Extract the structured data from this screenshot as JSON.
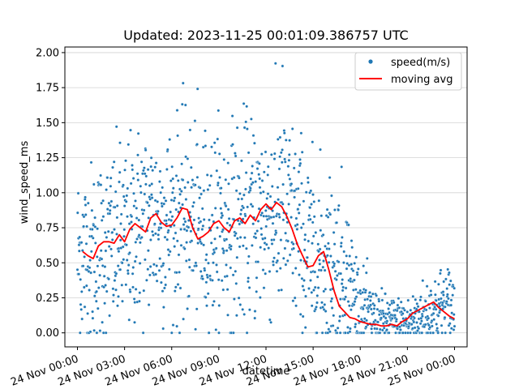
{
  "chart_data": {
    "type": "scatter",
    "title": "Updated: 2023-11-25 00:01:09.386757 UTC",
    "xlabel": "datetime",
    "ylabel": "wind_speed_ms",
    "x_ticks": [
      "24 Nov 00:00",
      "24 Nov 03:00",
      "24 Nov 06:00",
      "24 Nov 09:00",
      "24 Nov 12:00",
      "24 Nov 15:00",
      "24 Nov 18:00",
      "24 Nov 21:00",
      "25 Nov 00:00"
    ],
    "y_ticks": [
      "0.00",
      "0.25",
      "0.50",
      "0.75",
      "1.00",
      "1.25",
      "1.50",
      "1.75",
      "2.00"
    ],
    "xlim": [
      "2023-11-23 23:12",
      "2023-11-25 00:48"
    ],
    "ylim": [
      -0.1,
      2.04
    ],
    "grid": "horizontal",
    "legend_position": "top-right",
    "series": [
      {
        "name": "speed(m/s)",
        "kind": "scatter",
        "color": "#1f77b4",
        "spread_profile": [
          {
            "x": "2023-11-24 00:00",
            "mean": 0.55,
            "sd": 0.32
          },
          {
            "x": "2023-11-24 01:00",
            "mean": 0.55,
            "sd": 0.33
          },
          {
            "x": "2023-11-24 02:00",
            "mean": 0.62,
            "sd": 0.33
          },
          {
            "x": "2023-11-24 03:00",
            "mean": 0.65,
            "sd": 0.34
          },
          {
            "x": "2023-11-24 04:00",
            "mean": 0.78,
            "sd": 0.35
          },
          {
            "x": "2023-11-24 05:00",
            "mean": 0.8,
            "sd": 0.35
          },
          {
            "x": "2023-11-24 06:00",
            "mean": 0.78,
            "sd": 0.35
          },
          {
            "x": "2023-11-24 07:00",
            "mean": 0.82,
            "sd": 0.36
          },
          {
            "x": "2023-11-24 08:00",
            "mean": 0.7,
            "sd": 0.36
          },
          {
            "x": "2023-11-24 09:00",
            "mean": 0.75,
            "sd": 0.36
          },
          {
            "x": "2023-11-24 10:00",
            "mean": 0.76,
            "sd": 0.36
          },
          {
            "x": "2023-11-24 11:00",
            "mean": 0.82,
            "sd": 0.36
          },
          {
            "x": "2023-11-24 12:00",
            "mean": 0.84,
            "sd": 0.37
          },
          {
            "x": "2023-11-24 13:00",
            "mean": 0.88,
            "sd": 0.37
          },
          {
            "x": "2023-11-24 14:00",
            "mean": 0.72,
            "sd": 0.36
          },
          {
            "x": "2023-11-24 15:00",
            "mean": 0.52,
            "sd": 0.34
          },
          {
            "x": "2023-11-24 16:00",
            "mean": 0.5,
            "sd": 0.32
          },
          {
            "x": "2023-11-24 17:00",
            "mean": 0.45,
            "sd": 0.3
          },
          {
            "x": "2023-11-24 18:00",
            "mean": 0.18,
            "sd": 0.14
          },
          {
            "x": "2023-11-24 19:00",
            "mean": 0.1,
            "sd": 0.1
          },
          {
            "x": "2023-11-24 20:00",
            "mean": 0.08,
            "sd": 0.09
          },
          {
            "x": "2023-11-24 21:00",
            "mean": 0.07,
            "sd": 0.09
          },
          {
            "x": "2023-11-24 22:00",
            "mean": 0.12,
            "sd": 0.12
          },
          {
            "x": "2023-11-24 23:00",
            "mean": 0.18,
            "sd": 0.14
          },
          {
            "x": "2023-11-25 00:00",
            "mean": 0.2,
            "sd": 0.15
          }
        ],
        "point_count": 1400,
        "max": 1.95
      },
      {
        "name": "moving avg",
        "kind": "line",
        "color": "#ff0000",
        "x": [
          "2023-11-24 00:20",
          "2023-11-24 00:40",
          "2023-11-24 01:00",
          "2023-11-24 01:20",
          "2023-11-24 01:40",
          "2023-11-24 02:00",
          "2023-11-24 02:20",
          "2023-11-24 02:40",
          "2023-11-24 03:00",
          "2023-11-24 03:20",
          "2023-11-24 03:40",
          "2023-11-24 04:00",
          "2023-11-24 04:20",
          "2023-11-24 04:40",
          "2023-11-24 05:00",
          "2023-11-24 05:20",
          "2023-11-24 05:40",
          "2023-11-24 06:00",
          "2023-11-24 06:20",
          "2023-11-24 06:40",
          "2023-11-24 07:00",
          "2023-11-24 07:20",
          "2023-11-24 07:40",
          "2023-11-24 08:00",
          "2023-11-24 08:20",
          "2023-11-24 08:40",
          "2023-11-24 09:00",
          "2023-11-24 09:20",
          "2023-11-24 09:40",
          "2023-11-24 10:00",
          "2023-11-24 10:20",
          "2023-11-24 10:40",
          "2023-11-24 11:00",
          "2023-11-24 11:20",
          "2023-11-24 11:40",
          "2023-11-24 12:00",
          "2023-11-24 12:20",
          "2023-11-24 12:40",
          "2023-11-24 13:00",
          "2023-11-24 13:20",
          "2023-11-24 13:40",
          "2023-11-24 14:00",
          "2023-11-24 14:20",
          "2023-11-24 14:40",
          "2023-11-24 15:00",
          "2023-11-24 15:20",
          "2023-11-24 15:40",
          "2023-11-24 16:00",
          "2023-11-24 16:20",
          "2023-11-24 16:40",
          "2023-11-24 17:00",
          "2023-11-24 17:20",
          "2023-11-24 17:40",
          "2023-11-24 18:00",
          "2023-11-24 18:20",
          "2023-11-24 18:40",
          "2023-11-24 19:00",
          "2023-11-24 19:20",
          "2023-11-24 19:40",
          "2023-11-24 20:00",
          "2023-11-24 20:20",
          "2023-11-24 20:40",
          "2023-11-24 21:00",
          "2023-11-24 21:20",
          "2023-11-24 21:40",
          "2023-11-24 22:00",
          "2023-11-24 22:20",
          "2023-11-24 22:40",
          "2023-11-24 23:00",
          "2023-11-24 23:20",
          "2023-11-24 23:40",
          "2023-11-25 00:00"
        ],
        "values": [
          0.58,
          0.55,
          0.53,
          0.62,
          0.65,
          0.65,
          0.64,
          0.7,
          0.65,
          0.74,
          0.78,
          0.75,
          0.72,
          0.82,
          0.85,
          0.79,
          0.76,
          0.77,
          0.82,
          0.89,
          0.88,
          0.75,
          0.67,
          0.69,
          0.72,
          0.78,
          0.8,
          0.75,
          0.72,
          0.8,
          0.82,
          0.78,
          0.84,
          0.8,
          0.88,
          0.92,
          0.88,
          0.93,
          0.9,
          0.83,
          0.74,
          0.63,
          0.55,
          0.47,
          0.48,
          0.55,
          0.58,
          0.45,
          0.3,
          0.19,
          0.15,
          0.11,
          0.1,
          0.08,
          0.07,
          0.06,
          0.06,
          0.05,
          0.05,
          0.06,
          0.05,
          0.08,
          0.1,
          0.14,
          0.16,
          0.18,
          0.2,
          0.22,
          0.18,
          0.15,
          0.12,
          0.1
        ]
      }
    ]
  }
}
